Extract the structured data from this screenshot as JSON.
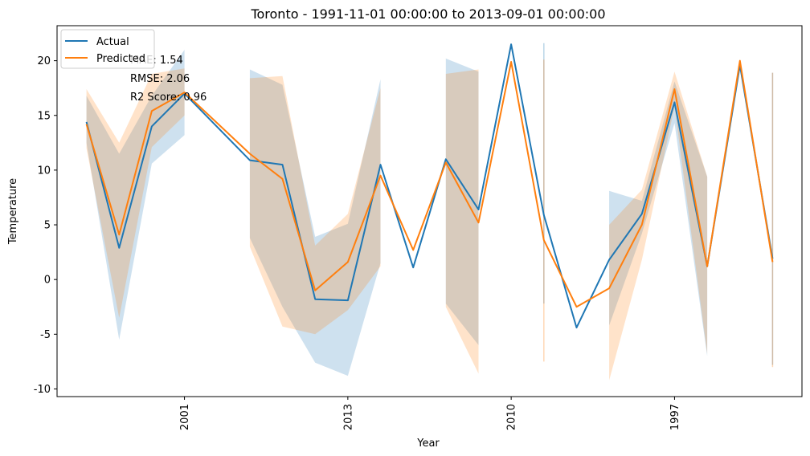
{
  "chart_data": {
    "type": "line",
    "title": "Toronto - 1991-11-01 00:00:00 to 2013-09-01 00:00:00",
    "xlabel": "Year",
    "ylabel": "Temperature",
    "ylim": [
      -10.7,
      23.2
    ],
    "xlim": [
      -0.9,
      21.9
    ],
    "yticks": [
      -10,
      -5,
      0,
      5,
      10,
      15,
      20
    ],
    "xticks": [
      {
        "pos": 3,
        "label": "2001"
      },
      {
        "pos": 8,
        "label": "2013"
      },
      {
        "pos": 13,
        "label": "2010"
      },
      {
        "pos": 18,
        "label": "1997"
      }
    ],
    "x": [
      0,
      1,
      2,
      3,
      4,
      5,
      6,
      7,
      8,
      9,
      10,
      11,
      12,
      13,
      14,
      15,
      16,
      17,
      18,
      19,
      20,
      21
    ],
    "series": [
      {
        "name": "Actual",
        "color": "#1f77b4",
        "values": [
          14.4,
          2.9,
          14.0,
          17.0,
          null,
          10.9,
          10.5,
          -1.8,
          -1.9,
          10.5,
          1.1,
          11.0,
          6.4,
          21.5,
          5.9,
          -4.4,
          1.8,
          6.0,
          16.2,
          1.2,
          19.6,
          1.9
        ],
        "band_lower": [
          12.5,
          -5.5,
          10.6,
          13.2,
          null,
          3.8,
          -2.5,
          -7.6,
          -8.8,
          1.5,
          null,
          -2.2,
          -6.0,
          null,
          -2.2,
          null,
          -4.2,
          4.2,
          14.3,
          -7.0,
          null,
          -7.8
        ],
        "band_upper": [
          16.8,
          11.5,
          16.8,
          21.0,
          null,
          19.2,
          17.8,
          3.9,
          5.1,
          18.3,
          null,
          20.2,
          19.0,
          null,
          21.6,
          null,
          8.1,
          7.2,
          18.1,
          9.4,
          null,
          18.9
        ]
      },
      {
        "name": "Predicted",
        "color": "#ff7f0e",
        "values": [
          14.2,
          4.1,
          15.4,
          17.1,
          null,
          11.5,
          9.2,
          -1.0,
          1.6,
          9.5,
          2.7,
          10.7,
          5.2,
          19.9,
          3.6,
          -2.5,
          -0.8,
          5.0,
          17.4,
          1.2,
          20.0,
          1.6
        ],
        "band_lower": [
          12.0,
          -3.5,
          12.1,
          15.0,
          null,
          3.0,
          -4.3,
          -5.0,
          -2.8,
          1.2,
          null,
          -2.5,
          -8.6,
          null,
          -7.5,
          null,
          -9.2,
          1.8,
          15.8,
          -6.8,
          null,
          -8.0
        ],
        "band_upper": [
          17.4,
          12.5,
          18.8,
          19.3,
          null,
          18.4,
          18.6,
          3.1,
          6.0,
          17.5,
          null,
          18.8,
          19.2,
          null,
          20.1,
          null,
          5.0,
          8.2,
          19.0,
          9.4,
          null,
          18.9
        ]
      }
    ],
    "legend": {
      "placement": "top-left"
    },
    "annotations": [
      "MAE: 1.54",
      "RMSE: 2.06",
      "R2 Score: 0.96"
    ],
    "grid": false
  }
}
